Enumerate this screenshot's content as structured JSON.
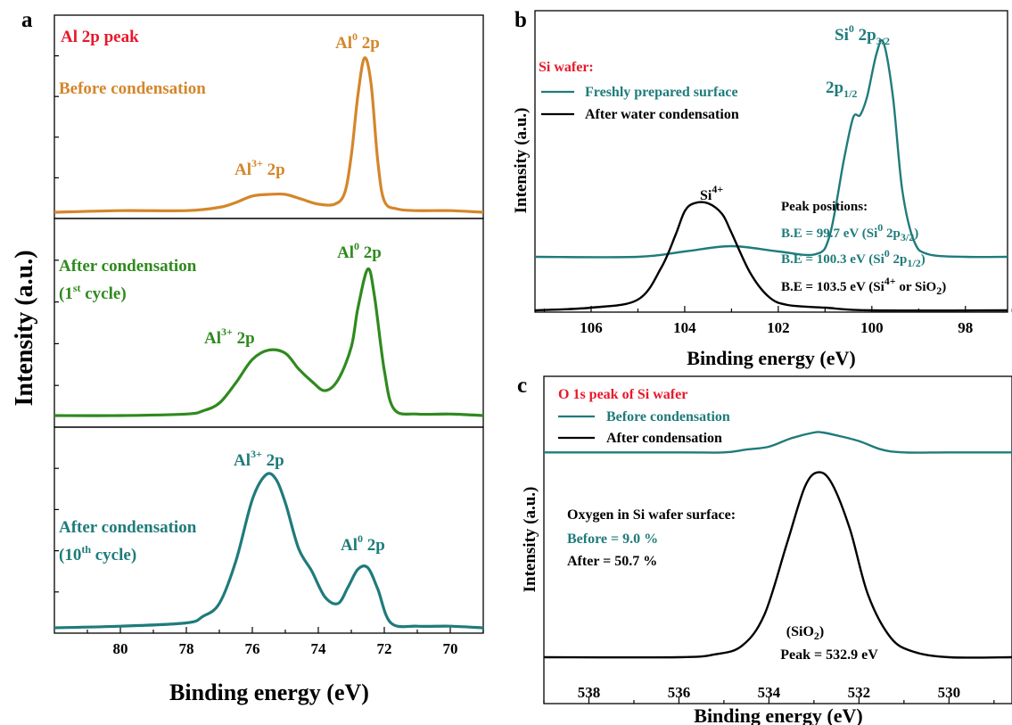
{
  "colors": {
    "orange": "#d4862a",
    "green": "#2f8a1e",
    "teal": "#1f7b7b",
    "black": "#000000",
    "red": "#e8182b"
  },
  "chart_data": [
    {
      "panel": "a",
      "type": "line",
      "title": "Al 2p peak",
      "xlabel": "Binding energy (eV)",
      "ylabel": "Intensity (a.u.)",
      "x_reversed": true,
      "xlim": [
        82,
        69
      ],
      "xticks": [
        80,
        78,
        76,
        74,
        72,
        70
      ],
      "xtick_labels": [
        "80",
        "78",
        "76",
        "74",
        "72",
        "70"
      ],
      "series": [
        {
          "name": "Before condensation",
          "x": [
            82,
            80,
            78,
            77,
            76.5,
            76,
            75.5,
            75,
            74.5,
            74,
            73.5,
            73.2,
            73.0,
            72.8,
            72.6,
            72.4,
            72.2,
            72.0,
            71.6,
            71,
            70,
            69
          ],
          "y": [
            0.03,
            0.04,
            0.04,
            0.06,
            0.09,
            0.13,
            0.14,
            0.14,
            0.11,
            0.08,
            0.08,
            0.15,
            0.38,
            0.75,
            0.98,
            0.82,
            0.35,
            0.1,
            0.05,
            0.04,
            0.04,
            0.03
          ]
        },
        {
          "name": "After condensation (1st cycle)",
          "x": [
            82,
            80,
            78,
            77.5,
            77,
            76.5,
            76,
            75.5,
            75,
            74.6,
            74.2,
            73.8,
            73.4,
            73.0,
            72.8,
            72.5,
            72.3,
            72.0,
            71.7,
            71,
            70,
            69
          ],
          "y": [
            0.03,
            0.03,
            0.04,
            0.06,
            0.11,
            0.24,
            0.39,
            0.45,
            0.43,
            0.33,
            0.25,
            0.19,
            0.26,
            0.47,
            0.72,
            0.97,
            0.8,
            0.32,
            0.07,
            0.04,
            0.04,
            0.03
          ]
        },
        {
          "name": "After condensation (10th cycle)",
          "x": [
            82,
            80,
            78,
            77.5,
            77,
            76.5,
            76,
            75.6,
            75.3,
            75,
            74.6,
            74.2,
            73.8,
            73.4,
            73.1,
            72.8,
            72.5,
            72.2,
            71.8,
            71,
            70,
            69
          ],
          "y": [
            0.03,
            0.04,
            0.06,
            0.1,
            0.18,
            0.44,
            0.82,
            0.97,
            0.95,
            0.8,
            0.52,
            0.38,
            0.22,
            0.18,
            0.28,
            0.39,
            0.4,
            0.27,
            0.06,
            0.04,
            0.04,
            0.03
          ]
        }
      ],
      "annotations": [
        {
          "text": "Al 2p peak"
        },
        {
          "text": "Before condensation"
        },
        {
          "text": "After condensation"
        },
        {
          "text": "(1st cycle)"
        },
        {
          "text": "After condensation"
        },
        {
          "text": "(10th cycle)"
        },
        {
          "text": "Al0 2p"
        },
        {
          "text": "Al3+ 2p"
        }
      ]
    },
    {
      "panel": "b",
      "type": "line",
      "title": "Si wafer:",
      "xlabel": "Binding energy (eV)",
      "ylabel": "Intensity (a.u.)",
      "x_reversed": true,
      "xlim": [
        107.2,
        97.1
      ],
      "xticks": [
        106,
        104,
        102,
        100,
        98
      ],
      "xtick_labels": [
        "106",
        "104",
        "102",
        "100",
        "98"
      ],
      "series": [
        {
          "name": "Freshly prepared surface",
          "x": [
            107.2,
            105,
            104,
            103,
            102,
            101.2,
            100.9,
            100.6,
            100.4,
            100.25,
            100.1,
            99.9,
            99.75,
            99.55,
            99.35,
            99.1,
            98.8,
            98,
            97.1
          ],
          "y": [
            0.2,
            0.2,
            0.22,
            0.24,
            0.22,
            0.21,
            0.28,
            0.56,
            0.72,
            0.73,
            0.8,
            0.96,
            1.0,
            0.8,
            0.45,
            0.26,
            0.21,
            0.2,
            0.2
          ]
        },
        {
          "name": "After water condensation",
          "x": [
            107.2,
            106,
            105,
            104.5,
            104.2,
            104.0,
            103.8,
            103.5,
            103.2,
            103.0,
            102.6,
            102.2,
            101.8,
            101,
            100,
            97.1
          ],
          "y": [
            0.0,
            0.01,
            0.04,
            0.16,
            0.28,
            0.37,
            0.4,
            0.4,
            0.36,
            0.29,
            0.14,
            0.05,
            0.02,
            0.01,
            0.0,
            0.0
          ]
        }
      ],
      "annotations": [
        {
          "text": "Si wafer:"
        },
        {
          "text": "Si0 2p3/2"
        },
        {
          "text": "2p1/2"
        },
        {
          "text": "Si4+"
        },
        {
          "text": "Peak positions:"
        },
        {
          "text": "B.E = 99.7 eV (Si0 2p3/2)"
        },
        {
          "text": "B.E = 100.3 eV (Si0 2p1/2)"
        },
        {
          "text": "B.E = 103.5 eV (Si4+ or SiO2)"
        }
      ]
    },
    {
      "panel": "c",
      "type": "line",
      "title": "O 1s peak of Si wafer",
      "xlabel": "Binding energy (eV)",
      "ylabel": "Intensity (a.u.)",
      "x_reversed": true,
      "xlim": [
        539,
        528.6
      ],
      "xticks": [
        538,
        536,
        534,
        532,
        530
      ],
      "xtick_labels": [
        "538",
        "536",
        "534",
        "532",
        "530"
      ],
      "series": [
        {
          "name": "Before condensation",
          "x": [
            539,
            536,
            535,
            534.5,
            534,
            533.5,
            533.0,
            532.8,
            532.5,
            532.0,
            531.5,
            531,
            530,
            528.6
          ],
          "y": [
            0.72,
            0.72,
            0.72,
            0.73,
            0.74,
            0.77,
            0.79,
            0.79,
            0.78,
            0.76,
            0.73,
            0.72,
            0.72,
            0.72
          ]
        },
        {
          "name": "After condensation",
          "x": [
            539,
            536,
            535.2,
            534.6,
            534.1,
            533.6,
            533.2,
            532.9,
            532.6,
            532.2,
            531.8,
            531.3,
            530.8,
            530,
            528.6
          ],
          "y": [
            0.0,
            0.0,
            0.01,
            0.04,
            0.15,
            0.4,
            0.6,
            0.65,
            0.61,
            0.45,
            0.22,
            0.07,
            0.02,
            0.0,
            0.0
          ]
        }
      ],
      "annotations": [
        {
          "text": "O 1s peak of Si wafer"
        },
        {
          "text": "Oxygen in Si wafer surface:"
        },
        {
          "text": "Before = 9.0 %"
        },
        {
          "text": "After = 50.7 %"
        },
        {
          "text": "(SiO2)"
        },
        {
          "text": "Peak = 532.9 eV"
        }
      ]
    }
  ],
  "labels": {
    "panel_a": "a",
    "panel_b": "b",
    "panel_c": "c",
    "a_title": "Al 2p peak",
    "a_before": "Before condensation",
    "a_after": "After condensation",
    "a_first_cycle_pre": "(1",
    "a_first_cycle_sup": "st",
    "a_first_cycle_post": " cycle)",
    "a_tenth_cycle_pre": "(10",
    "a_tenth_cycle_sup": "th",
    "a_tenth_cycle_post": " cycle)",
    "al_element": "Al",
    "al0_sup": "0",
    "al3_sup": "3+",
    "two_p": " 2p",
    "a_ylabel": "Intensity (a.u.)",
    "a_xlabel": "Binding energy (eV)",
    "b_title": "Si wafer:",
    "b_legend_fresh": "Freshly prepared surface",
    "b_legend_after": "After water condensation",
    "b_si": "Si",
    "b_si0_sup": "0",
    "b_si4_sup": "4+",
    "b_2p": " 2p",
    "b_2p_alone": "2p",
    "b_sub_32": "3/2",
    "b_sub_12": "1/2",
    "b_peak_positions": "Peak positions:",
    "b_be1_pre": "B.E = 99.7 eV (Si",
    "b_be2_pre": "B.E = 100.3 eV (Si",
    "b_be3_pre": "B.E = 103.5 eV (Si",
    "b_be3_mid": " or SiO",
    "b_sub_2": "2",
    "close_paren": ")",
    "b_ylabel": "Intensity (a.u.)",
    "b_xlabel": "Binding energy (eV)",
    "c_title": "O 1s peak of Si wafer",
    "c_legend_before": "Before condensation",
    "c_legend_after": "After condensation",
    "c_oxygen": "Oxygen in Si wafer surface:",
    "c_before": "Before = 9.0 %",
    "c_after": "After = 50.7 %",
    "c_sio2_pre": "(SiO",
    "c_sio2_sub": "2",
    "c_peak": "Peak = 532.9 eV",
    "c_ylabel": "Intensity (a.u.)",
    "c_xlabel": "Binding energy (eV)"
  }
}
